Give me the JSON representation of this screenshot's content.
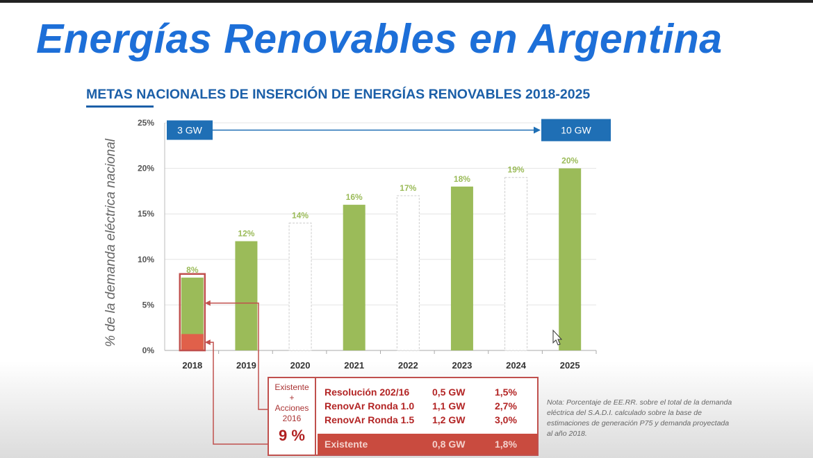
{
  "title": "Energías Renovables en Argentina",
  "subtitle": "METAS NACIONALES DE INSERCIÓN DE ENERGÍAS RENOVABLES 2018-2025",
  "chart_data": {
    "type": "bar",
    "title": "",
    "ylabel": "% de la demanda eléctrica nacional",
    "ylim": [
      0,
      25
    ],
    "yticks": [
      "0%",
      "5%",
      "10%",
      "15%",
      "20%",
      "25%"
    ],
    "grid": true,
    "categories": [
      "2018",
      "2019",
      "2020",
      "2021",
      "2022",
      "2023",
      "2024",
      "2025"
    ],
    "values": [
      8,
      12,
      14,
      16,
      17,
      18,
      19,
      20
    ],
    "data_labels": [
      "8%",
      "12%",
      "14%",
      "16%",
      "17%",
      "18%",
      "19%",
      "20%"
    ],
    "styles": [
      "solid",
      "solid",
      "dashed",
      "solid",
      "dashed",
      "solid",
      "dashed",
      "solid"
    ],
    "existing_2018": 1.8,
    "colors": {
      "bar": "#9bbb59",
      "existing": "#e0604a",
      "label": "#9bbb59",
      "highlight": "#c0504d",
      "capacity": "#1f6fb5"
    },
    "capacity_start": "3 GW",
    "capacity_end": "10 GW"
  },
  "table": {
    "left": {
      "line1": "Existente",
      "line2": "+",
      "line3": "Acciones",
      "line4": "2016",
      "total": "9 %"
    },
    "rows": [
      {
        "name": "Resolución 202/16",
        "gw": "0,5 GW",
        "pct": "1,5%"
      },
      {
        "name": "RenovAr Ronda 1.0",
        "gw": "1,1 GW",
        "pct": "2,7%"
      },
      {
        "name": "RenovAr Ronda 1.5",
        "gw": "1,2 GW",
        "pct": "3,0%"
      }
    ],
    "existing": {
      "name": "Existente",
      "gw": "0,8 GW",
      "pct": "1,8%"
    }
  },
  "note": "Nota: Porcentaje de EE.RR. sobre el total de la demanda eléctrica del S.A.D.I. calculado sobre la base de estimaciones de generación P75 y demanda proyectada al año 2018."
}
